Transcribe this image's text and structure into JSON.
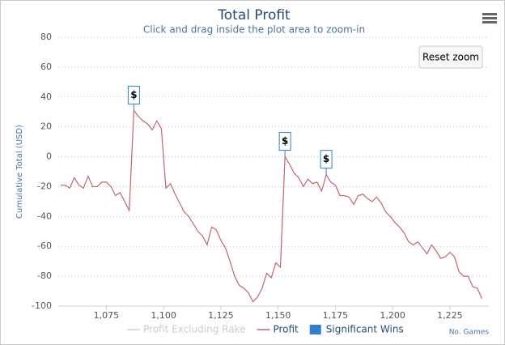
{
  "chart_data": {
    "type": "line",
    "title": "Total Profit",
    "subtitle": "Click and drag inside the plot area to zoom-in",
    "y_axis_label": "Cumulative Total (USD)",
    "x_axis_label": "No. Games",
    "reset_button": "Reset zoom",
    "xlim": [
      1054,
      1242
    ],
    "xticks": [
      {
        "value": 1075,
        "label": "1,075"
      },
      {
        "value": 1100,
        "label": "1,100"
      },
      {
        "value": 1125,
        "label": "1,125"
      },
      {
        "value": 1150,
        "label": "1,150"
      },
      {
        "value": 1175,
        "label": "1,175"
      },
      {
        "value": 1200,
        "label": "1,200"
      },
      {
        "value": 1225,
        "label": "1,225"
      }
    ],
    "ylim": [
      -100,
      80
    ],
    "yticks": [
      -100,
      -80,
      -60,
      -40,
      -20,
      0,
      20,
      40,
      60,
      80
    ],
    "grid": true,
    "x": [
      1055,
      1057,
      1059,
      1061,
      1063,
      1065,
      1067,
      1069,
      1071,
      1073,
      1075,
      1077,
      1079,
      1081,
      1083,
      1085,
      1087,
      1089,
      1091,
      1093,
      1095,
      1097,
      1099,
      1101,
      1103,
      1105,
      1107,
      1109,
      1111,
      1113,
      1115,
      1117,
      1119,
      1121,
      1123,
      1125,
      1127,
      1129,
      1131,
      1133,
      1135,
      1137,
      1139,
      1141,
      1143,
      1145,
      1147,
      1149,
      1151,
      1153,
      1155,
      1157,
      1159,
      1161,
      1163,
      1165,
      1167,
      1169,
      1171,
      1173,
      1175,
      1177,
      1179,
      1181,
      1183,
      1185,
      1187,
      1189,
      1191,
      1193,
      1195,
      1197,
      1199,
      1201,
      1203,
      1205,
      1207,
      1209,
      1211,
      1213,
      1215,
      1217,
      1219,
      1221,
      1223,
      1225,
      1227,
      1229,
      1231,
      1233,
      1235,
      1237,
      1239
    ],
    "series": [
      {
        "name": "Profit Excluding Rake",
        "color": "#cccccc",
        "visible": false
      },
      {
        "name": "Profit",
        "color": "#c0676c",
        "values": [
          -19,
          -19,
          -21,
          -14,
          -19,
          -21,
          -13,
          -20,
          -20,
          -17,
          -17,
          -20,
          -26,
          -24,
          -30,
          -36,
          31,
          27,
          24,
          22,
          18,
          24,
          19,
          -21,
          -18,
          -25,
          -31,
          -37,
          -40,
          -45,
          -50,
          -53,
          -59,
          -47,
          -49,
          -56,
          -61,
          -70,
          -80,
          -86,
          -88,
          -91,
          -97,
          -94,
          -88,
          -78,
          -81,
          -71,
          -74,
          0,
          -5,
          -11,
          -14,
          -20,
          -15,
          -18,
          -17,
          -23,
          -12,
          -17,
          -19,
          -26,
          -26,
          -27,
          -32,
          -26,
          -25,
          -28,
          -30,
          -27,
          -31,
          -37,
          -40,
          -44,
          -47,
          -51,
          -57,
          -59,
          -57,
          -61,
          -65,
          -59,
          -63,
          -68,
          -67,
          -64,
          -67,
          -77,
          -80,
          -80,
          -87,
          -88,
          -95
        ]
      },
      {
        "name": "Significant Wins",
        "color": "#2f7ed8",
        "type": "flags",
        "x": [
          1087,
          1153,
          1171
        ],
        "titles": [
          "$",
          "$",
          "$"
        ]
      }
    ]
  }
}
